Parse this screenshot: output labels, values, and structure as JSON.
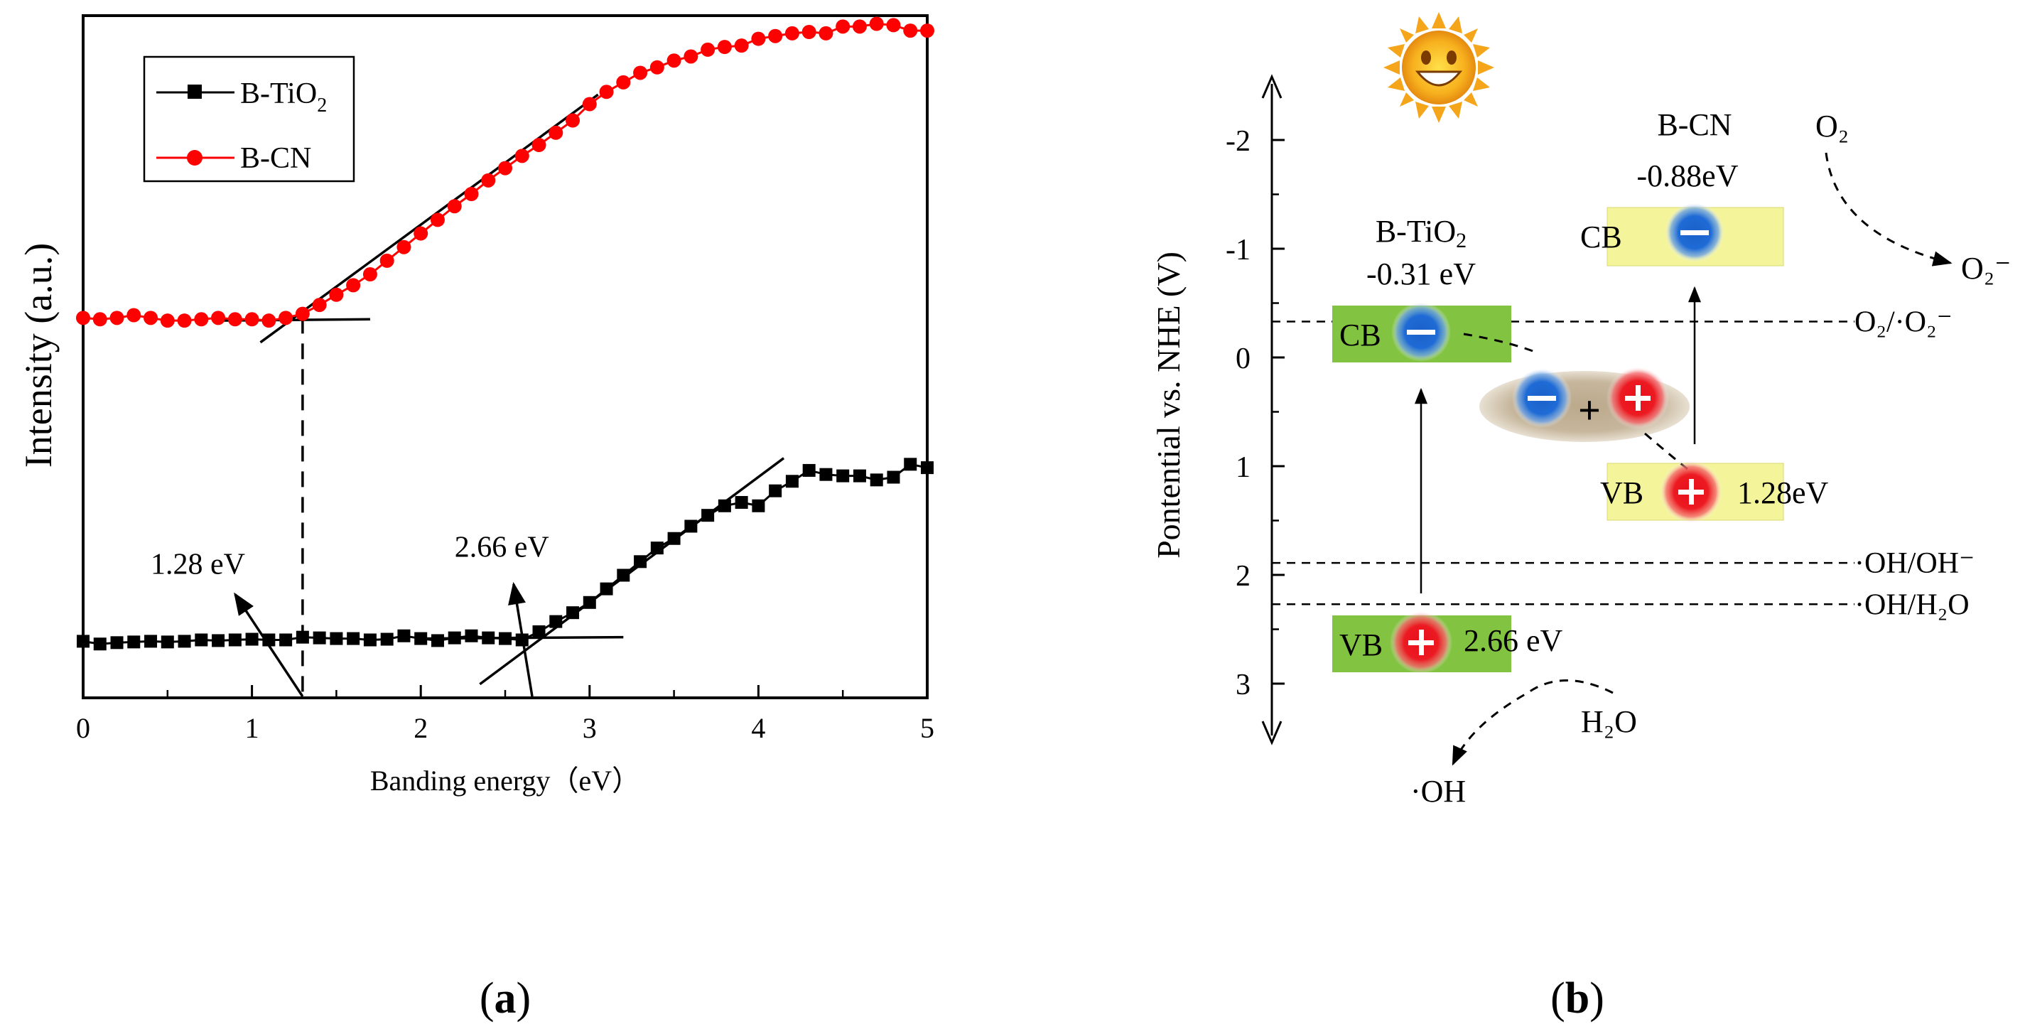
{
  "chart_data": [
    {
      "type": "line",
      "panel_label": "a",
      "xlabel": "Banding energy（eV）",
      "ylabel": "Intensity (a.u.)",
      "xlim": [
        0,
        5
      ],
      "ylim": [
        0,
        1
      ],
      "xticks": [
        "0",
        "1",
        "2",
        "3",
        "4",
        "5"
      ],
      "legend": {
        "position": "top-left"
      },
      "series": [
        {
          "name_main": "B-TiO",
          "name_sub": "2",
          "color": "#000000",
          "marker": "square",
          "x": [
            0.0,
            0.1,
            0.2,
            0.3,
            0.4,
            0.5,
            0.6,
            0.7,
            0.8,
            0.9,
            1.0,
            1.1,
            1.2,
            1.3,
            1.4,
            1.5,
            1.6,
            1.7,
            1.8,
            1.9,
            2.0,
            2.1,
            2.2,
            2.3,
            2.4,
            2.5,
            2.6,
            2.7,
            2.8,
            2.9,
            3.0,
            3.1,
            3.2,
            3.3,
            3.4,
            3.5,
            3.6,
            3.7,
            3.8,
            3.9,
            4.0,
            4.1,
            4.2,
            4.3,
            4.4,
            4.5,
            4.6,
            4.7,
            4.8,
            4.9,
            5.0
          ],
          "y": [
            0.081,
            0.077,
            0.079,
            0.08,
            0.081,
            0.08,
            0.081,
            0.083,
            0.082,
            0.083,
            0.084,
            0.083,
            0.083,
            0.087,
            0.086,
            0.085,
            0.085,
            0.083,
            0.084,
            0.089,
            0.085,
            0.082,
            0.086,
            0.089,
            0.086,
            0.085,
            0.083,
            0.095,
            0.11,
            0.123,
            0.138,
            0.158,
            0.178,
            0.198,
            0.218,
            0.232,
            0.25,
            0.266,
            0.28,
            0.285,
            0.28,
            0.302,
            0.316,
            0.332,
            0.326,
            0.324,
            0.324,
            0.318,
            0.322,
            0.341,
            0.336
          ]
        },
        {
          "name_main": "B-CN",
          "name_sub": "",
          "color": "#ff0000",
          "marker": "circle",
          "x": [
            0.0,
            0.1,
            0.2,
            0.3,
            0.4,
            0.5,
            0.6,
            0.7,
            0.8,
            0.9,
            1.0,
            1.1,
            1.2,
            1.3,
            1.4,
            1.5,
            1.6,
            1.7,
            1.8,
            1.9,
            2.0,
            2.1,
            2.2,
            2.3,
            2.4,
            2.5,
            2.6,
            2.7,
            2.8,
            2.9,
            3.0,
            3.1,
            3.2,
            3.3,
            3.4,
            3.5,
            3.6,
            3.7,
            3.8,
            3.9,
            4.0,
            4.1,
            4.2,
            4.3,
            4.4,
            4.5,
            4.6,
            4.7,
            4.8,
            4.9,
            5.0
          ],
          "y": [
            0.556,
            0.554,
            0.556,
            0.56,
            0.556,
            0.552,
            0.552,
            0.554,
            0.556,
            0.554,
            0.554,
            0.552,
            0.556,
            0.562,
            0.575,
            0.59,
            0.604,
            0.62,
            0.64,
            0.66,
            0.68,
            0.7,
            0.72,
            0.738,
            0.758,
            0.776,
            0.794,
            0.81,
            0.828,
            0.846,
            0.87,
            0.888,
            0.902,
            0.916,
            0.924,
            0.934,
            0.94,
            0.95,
            0.954,
            0.956,
            0.966,
            0.97,
            0.974,
            0.976,
            0.974,
            0.984,
            0.984,
            0.988,
            0.986,
            0.978,
            0.978
          ]
        }
      ],
      "tangents": [
        {
          "x1": 0.8,
          "y1": 0.552,
          "x2": 1.7,
          "y2": 0.554
        },
        {
          "x1": 1.05,
          "y1": 0.52,
          "x2": 3.05,
          "y2": 0.884
        },
        {
          "x1": 1.3,
          "y1": 0.556,
          "x2": 1.3,
          "y2": 0.0
        },
        {
          "x1": 2.0,
          "y1": 0.085,
          "x2": 3.2,
          "y2": 0.087
        },
        {
          "x1": 2.35,
          "y1": 0.018,
          "x2": 4.15,
          "y2": 0.35
        }
      ],
      "annotations": [
        {
          "text": "1.28 eV",
          "x": 0.4,
          "y": 0.18,
          "arrow_from": [
            1.3,
            0.0
          ],
          "arrow_to": [
            0.9,
            0.15
          ]
        },
        {
          "text": "2.66 eV",
          "x": 2.2,
          "y": 0.205,
          "arrow_from": [
            2.66,
            0.0
          ],
          "arrow_to": [
            2.55,
            0.165
          ]
        }
      ]
    },
    {
      "type": "diagram",
      "panel_label": "b",
      "ylabel": "Pontential vs. NHE (V)",
      "ylim": [
        -2.6,
        3.5
      ],
      "yticks": [
        "-2",
        "-1",
        "0",
        "1",
        "2",
        "3"
      ],
      "materials": [
        {
          "name_main": "B-TiO",
          "name_sub": "2",
          "cb_label": "-0.31 eV",
          "vb_label": "2.66 eV",
          "cb_value": -0.31,
          "vb_value": 2.66
        },
        {
          "name_main": "B-CN",
          "name_sub": "",
          "cb_label": "-0.88eV",
          "vb_label": "1.28eV",
          "cb_value": -0.88,
          "vb_value": 1.28
        }
      ],
      "band_labels": {
        "cb": "CB",
        "vb": "VB"
      },
      "reference_levels": [
        {
          "label": "O₂/·O₂⁻",
          "value": -0.33
        },
        {
          "label": "·OH/OH⁻",
          "value": 1.89
        },
        {
          "label": "·OH/H₂O",
          "value": 2.27
        }
      ],
      "species": {
        "o2": "O₂",
        "o2_radical": "O₂⁻",
        "h2o": "H₂O",
        "oh": "·OH"
      },
      "charge_symbols": {
        "electron": "−",
        "hole": "+",
        "plus": "+"
      }
    }
  ]
}
